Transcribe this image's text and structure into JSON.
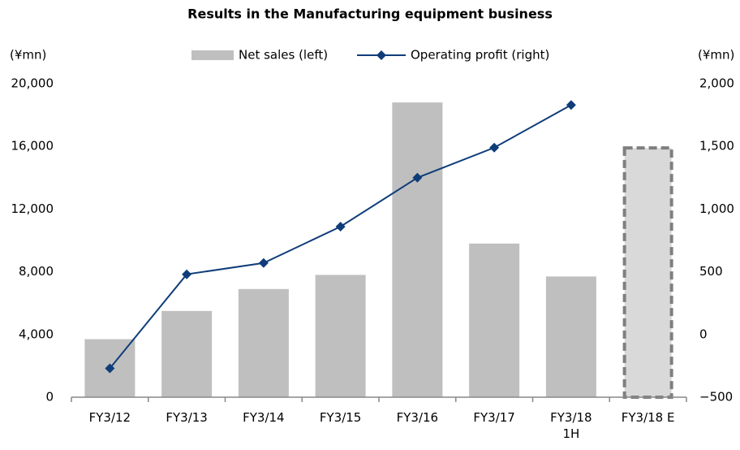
{
  "chart_data": {
    "type": "bar_line",
    "title": "Results in the Manufacturing equipment business",
    "y_label": "(¥mn)",
    "y2_label": "(¥mn)",
    "categories": [
      "FY3/12",
      "FY3/13",
      "FY3/14",
      "FY3/15",
      "FY3/16",
      "FY3/17",
      "FY3/18\n1H",
      "FY3/18 E"
    ],
    "series": [
      {
        "name": "Net sales (left)",
        "type": "bar",
        "color": "#bfbfbf",
        "colors": [
          "#bfbfbf",
          "#bfbfbf",
          "#bfbfbf",
          "#bfbfbf",
          "#bfbfbf",
          "#bfbfbf",
          "#bfbfbf",
          "#d9d9d9"
        ],
        "dashed": [
          false,
          false,
          false,
          false,
          false,
          false,
          false,
          true
        ],
        "values": [
          3700,
          5500,
          6900,
          7800,
          18800,
          9800,
          7700,
          15900
        ]
      },
      {
        "name": "Operating profit (right)",
        "type": "line",
        "axis": "y2",
        "color": "#0f3d7a",
        "values": [
          -270,
          480,
          570,
          860,
          1250,
          1490,
          1830,
          null
        ]
      }
    ],
    "ylim": [
      0,
      20000
    ],
    "yticks": [
      0,
      {
        "value": 4000,
        "label": "4,000"
      },
      {
        "value": 8000,
        "label": "8,000"
      },
      {
        "value": 12000,
        "label": "12,000"
      },
      {
        "value": 16000,
        "label": "16,000"
      },
      {
        "value": 20000,
        "label": "20,000"
      }
    ],
    "y2lim": [
      -500,
      2000
    ],
    "y2ticks": [
      {
        "value": -500,
        "label": "−500"
      },
      0,
      500,
      {
        "value": 1000,
        "label": "1,000"
      },
      {
        "value": 1500,
        "label": "1,500"
      },
      {
        "value": 2000,
        "label": "2,000"
      }
    ],
    "grid": false,
    "legend": "top"
  }
}
